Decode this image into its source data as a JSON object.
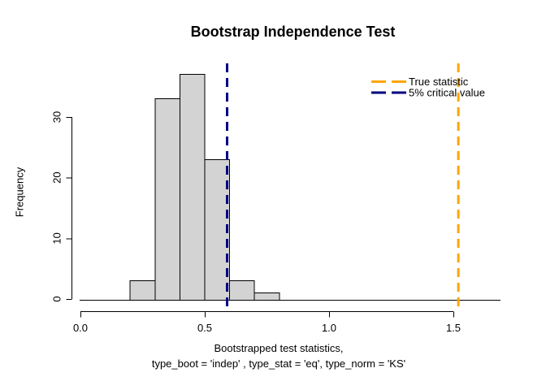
{
  "chart_data": {
    "type": "bar",
    "subtype": "histogram",
    "title": "Bootstrap Independence Test",
    "ylabel": "Frequency",
    "xlabel_lines": [
      "Bootstrapped test statistics,",
      "type_boot = 'indep' , type_stat = 'eq', type_norm = 'KS'"
    ],
    "bins": {
      "start": 0.2,
      "bin_width": 0.1,
      "counts": [
        3,
        33,
        37,
        23,
        3,
        1
      ],
      "edges": [
        0.2,
        0.3,
        0.4,
        0.5,
        0.6,
        0.7,
        0.8
      ]
    },
    "x_ticks": {
      "labels": [
        "0.0",
        "0.5",
        "1.0",
        "1.5"
      ],
      "values": [
        0.0,
        0.5,
        1.0,
        1.5
      ]
    },
    "y_ticks": {
      "labels": [
        "0",
        "10",
        "20",
        "30"
      ],
      "values": [
        0,
        10,
        20,
        30
      ]
    },
    "xlim": [
      0.0,
      1.5
    ],
    "ylim": [
      0,
      37
    ],
    "grid": false,
    "vlines": [
      {
        "label": "True statistic",
        "x": 1.52,
        "color": "#FFA500",
        "style": "dashed"
      },
      {
        "label": "5% critical value",
        "x": 0.59,
        "color": "#000080",
        "style": "dashed"
      }
    ],
    "legend": {
      "position": "topright",
      "entries": [
        {
          "label": "True statistic",
          "color": "#FFA500",
          "style": "dashed"
        },
        {
          "label": "5% critical value",
          "color": "#000080",
          "style": "dashed"
        }
      ]
    },
    "colors": {
      "bar_fill": "#D3D3D3",
      "bar_border": "#000000",
      "axis": "#000000",
      "background": "#FFFFFF"
    }
  }
}
